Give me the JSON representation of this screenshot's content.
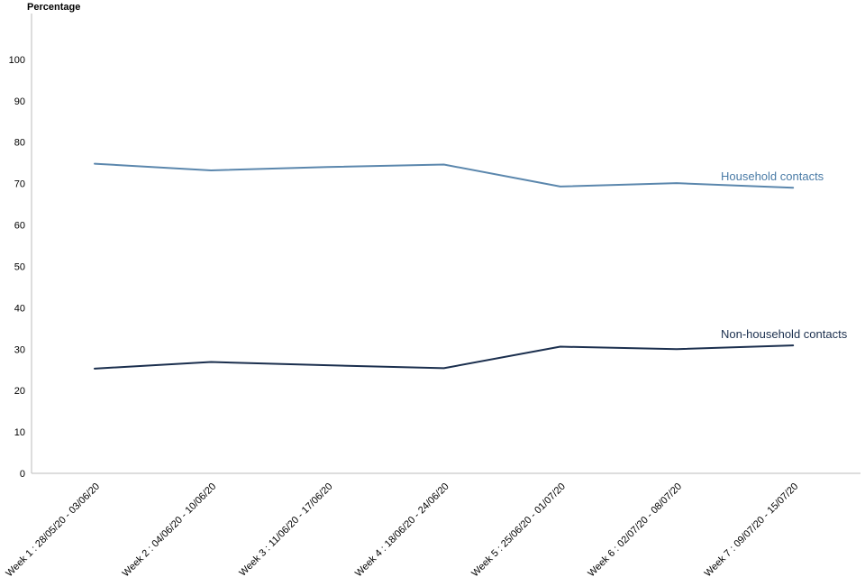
{
  "chart_data": {
    "type": "line",
    "title": "",
    "ylabel": "Percentage",
    "xlabel": "",
    "ylim": [
      0,
      110
    ],
    "yticks": [
      0,
      10,
      20,
      30,
      40,
      50,
      60,
      70,
      80,
      90,
      100
    ],
    "grid": false,
    "legend_position": "inline-right",
    "categories": [
      "Week 1 : 28/05/20 - 03/06/20",
      "Week 2 : 04/06/20 - 10/06/20",
      "Week 3 : 11/06/20 - 17/06/20",
      "Week 4 : 18/06/20 - 24/06/20",
      "Week 5 : 25/06/20 - 01/07/20",
      "Week 6 : 02/07/20 - 08/07/20",
      "Week 7 : 09/07/20 - 15/07/20"
    ],
    "series": [
      {
        "name": "Household contacts",
        "color": "#5b87ad",
        "label_color": "#4a7ba6",
        "values": [
          74.8,
          73.2,
          74.0,
          74.6,
          69.3,
          70.1,
          69.0
        ]
      },
      {
        "name": "Non-household contacts",
        "color": "#1b2f4e",
        "label_color": "#1b2f4e",
        "values": [
          25.3,
          26.9,
          26.1,
          25.4,
          30.6,
          30.0,
          30.9
        ]
      }
    ],
    "axis_color": "#bbbbbb",
    "tick_label_color": "#000000"
  }
}
